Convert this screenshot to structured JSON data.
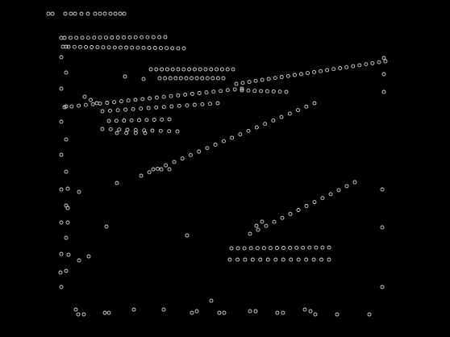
{
  "scene": {
    "background": "#000000",
    "dot_color": "#d8d8d8",
    "description": ""
  }
}
